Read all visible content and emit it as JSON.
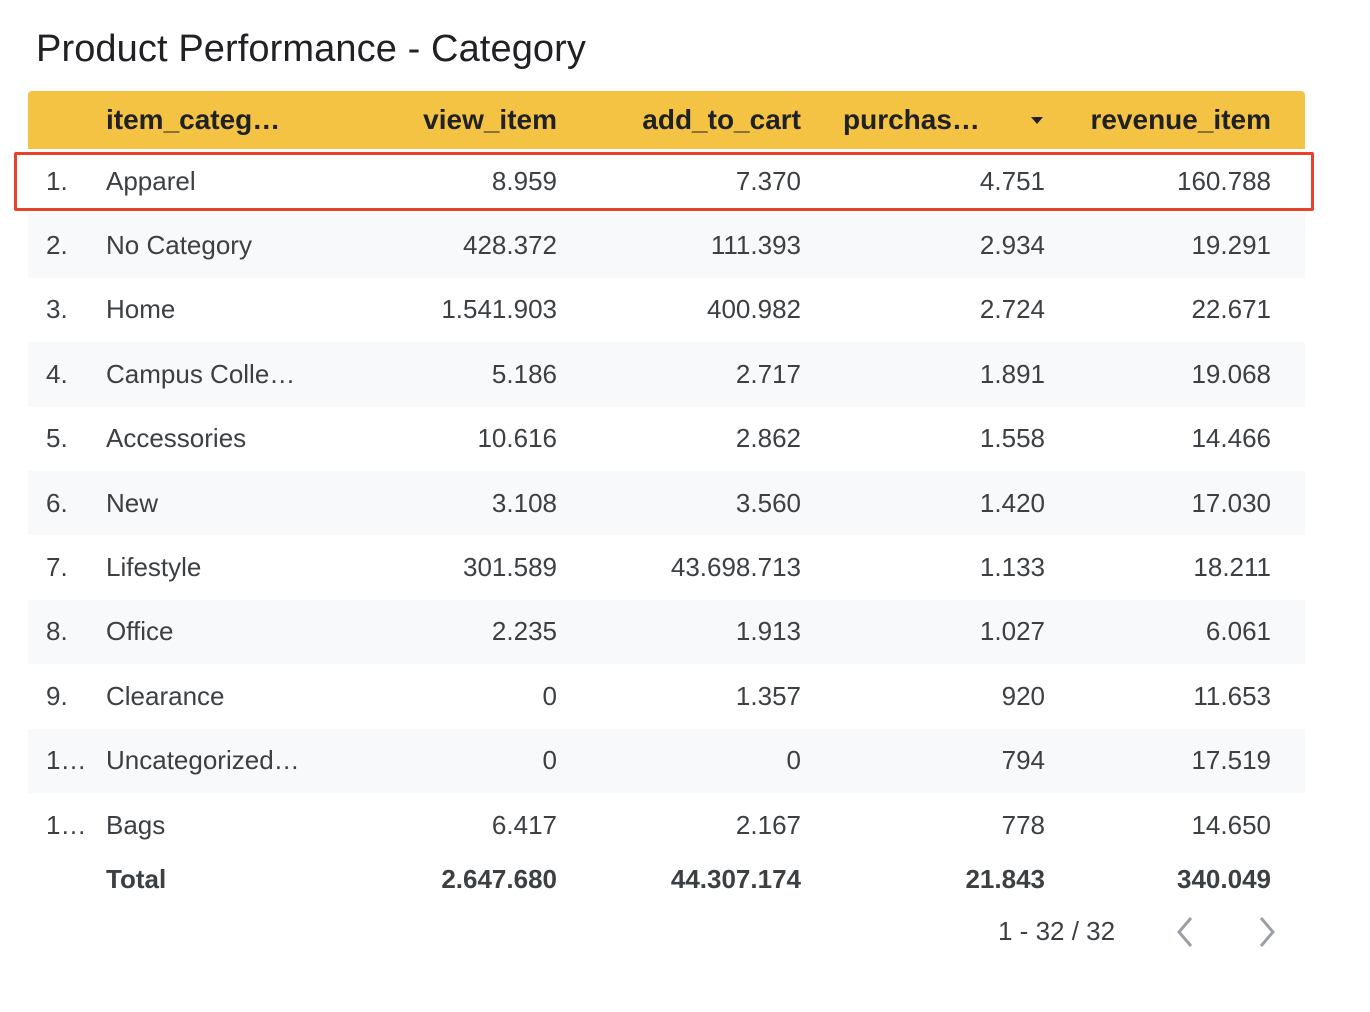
{
  "title": "Product Performance - Category",
  "table": {
    "columns": {
      "category": "item_categ…",
      "view_item": "view_item",
      "add_to_cart": "add_to_cart",
      "purchases": "purchas…",
      "revenue_item": "revenue_item"
    },
    "sort": {
      "column": "purchases",
      "direction": "desc",
      "icon": "sort-desc-icon"
    },
    "rows": [
      {
        "idx": "1.",
        "category": "Apparel",
        "view_item": "8.959",
        "add_to_cart": "7.370",
        "purchases": "4.751",
        "revenue_item": "160.788"
      },
      {
        "idx": "2.",
        "category": "No Category",
        "view_item": "428.372",
        "add_to_cart": "111.393",
        "purchases": "2.934",
        "revenue_item": "19.291"
      },
      {
        "idx": "3.",
        "category": "Home",
        "view_item": "1.541.903",
        "add_to_cart": "400.982",
        "purchases": "2.724",
        "revenue_item": "22.671"
      },
      {
        "idx": "4.",
        "category": "Campus Colle…",
        "view_item": "5.186",
        "add_to_cart": "2.717",
        "purchases": "1.891",
        "revenue_item": "19.068"
      },
      {
        "idx": "5.",
        "category": "Accessories",
        "view_item": "10.616",
        "add_to_cart": "2.862",
        "purchases": "1.558",
        "revenue_item": "14.466"
      },
      {
        "idx": "6.",
        "category": "New",
        "view_item": "3.108",
        "add_to_cart": "3.560",
        "purchases": "1.420",
        "revenue_item": "17.030"
      },
      {
        "idx": "7.",
        "category": "Lifestyle",
        "view_item": "301.589",
        "add_to_cart": "43.698.713",
        "purchases": "1.133",
        "revenue_item": "18.211"
      },
      {
        "idx": "8.",
        "category": "Office",
        "view_item": "2.235",
        "add_to_cart": "1.913",
        "purchases": "1.027",
        "revenue_item": "6.061"
      },
      {
        "idx": "9.",
        "category": "Clearance",
        "view_item": "0",
        "add_to_cart": "1.357",
        "purchases": "920",
        "revenue_item": "11.653"
      },
      {
        "idx": "1…",
        "category": "Uncategorized…",
        "view_item": "0",
        "add_to_cart": "0",
        "purchases": "794",
        "revenue_item": "17.519"
      },
      {
        "idx": "1…",
        "category": "Bags",
        "view_item": "6.417",
        "add_to_cart": "2.167",
        "purchases": "778",
        "revenue_item": "14.650"
      }
    ],
    "total": {
      "label": "Total",
      "view_item": "2.647.680",
      "add_to_cart": "44.307.174",
      "purchases": "21.843",
      "revenue_item": "340.049"
    },
    "highlighted_row_index": 0
  },
  "pagination": {
    "range": "1 - 32 / 32",
    "prev_icon": "chevron-left-icon",
    "next_icon": "chevron-right-icon"
  },
  "colors": {
    "header_bg": "#f5c343",
    "highlight_border": "#e8412c",
    "alt_row_bg": "#f8f9fa"
  }
}
